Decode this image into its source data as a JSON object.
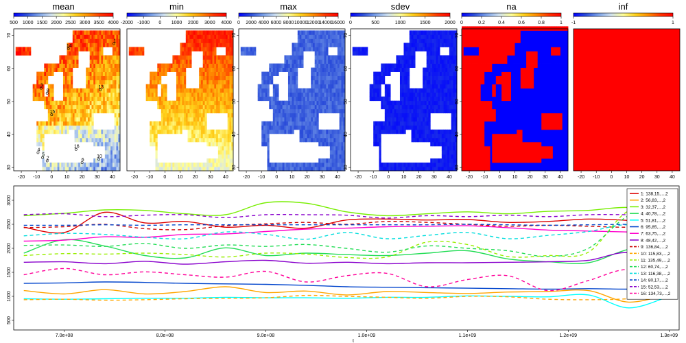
{
  "colors": {
    "map_scale": [
      "#0000ff",
      "#2b4dd9",
      "#7aa0e8",
      "#cfe0f0",
      "#ffff99",
      "#ffd11a",
      "#ff8c00",
      "#ff3300",
      "#ff0000"
    ],
    "na_red": "#ff0000",
    "na_blue": "#0000ff"
  },
  "chart_data": [
    {
      "type": "heatmap",
      "title": "mean",
      "colorbar_ticks": [
        "500",
        "1000",
        "1500",
        "2000",
        "2500",
        "3000",
        "3500",
        "4000"
      ],
      "colorbar_range": [
        500,
        4000
      ],
      "xticks": [
        "-20",
        "-10",
        "0",
        "10",
        "20",
        "30",
        "40"
      ],
      "yticks": [
        "30",
        "40",
        "50",
        "60",
        "70"
      ],
      "xlim": [
        -25,
        45
      ],
      "ylim": [
        29,
        72
      ],
      "style": "mean",
      "station_labels": [
        {
          "id": "1",
          "lon": 41,
          "lat": 67.5
        },
        {
          "id": "14",
          "lon": 11,
          "lat": 66
        },
        {
          "id": "3",
          "lon": -7,
          "lat": 54
        },
        {
          "id": "8",
          "lon": -3,
          "lat": 52.5
        },
        {
          "id": "13",
          "lon": 32,
          "lat": 53.5
        },
        {
          "id": "15",
          "lon": 0,
          "lat": 46
        },
        {
          "id": "16",
          "lon": 16,
          "lat": 35.5
        },
        {
          "id": "4",
          "lon": -9,
          "lat": 34.5
        },
        {
          "id": "5",
          "lon": -6,
          "lat": 33
        },
        {
          "id": "2",
          "lon": -3,
          "lat": 32
        },
        {
          "id": "10",
          "lon": 31,
          "lat": 32.5
        },
        {
          "id": "6",
          "lon": 20,
          "lat": 31.5
        }
      ]
    },
    {
      "type": "heatmap",
      "title": "min",
      "colorbar_ticks": [
        "-2000",
        "-1000",
        "0",
        "1000",
        "2000",
        "3000",
        "4000"
      ],
      "colorbar_range": [
        -2000,
        4000
      ],
      "xticks": [
        "-20",
        "-10",
        "0",
        "10",
        "20",
        "30",
        "40"
      ],
      "yticks": [],
      "xlim": [
        -25,
        45
      ],
      "ylim": [
        29,
        72
      ],
      "style": "min",
      "station_labels": []
    },
    {
      "type": "heatmap",
      "title": "max",
      "colorbar_ticks": [
        "0",
        "2000",
        "4000",
        "6000",
        "8000",
        "10000",
        "12000",
        "14000",
        "16000"
      ],
      "colorbar_range": [
        0,
        16000
      ],
      "xticks": [
        "-20",
        "-10",
        "0",
        "10",
        "20",
        "30",
        "40"
      ],
      "yticks": [
        "30",
        "40",
        "50",
        "60",
        "70"
      ],
      "xlim": [
        -25,
        45
      ],
      "ylim": [
        29,
        72
      ],
      "style": "max",
      "station_labels": []
    },
    {
      "type": "heatmap",
      "title": "sdev",
      "colorbar_ticks": [
        "0",
        "500",
        "1000",
        "1500",
        "2000"
      ],
      "colorbar_range": [
        0,
        2000
      ],
      "xticks": [
        "-20",
        "-10",
        "0",
        "10",
        "20",
        "30",
        "40"
      ],
      "yticks": [
        "30",
        "40",
        "50",
        "60",
        "70"
      ],
      "xlim": [
        -25,
        45
      ],
      "ylim": [
        29,
        72
      ],
      "style": "sdev",
      "station_labels": []
    },
    {
      "type": "heatmap",
      "title": "na",
      "colorbar_ticks": [
        "0",
        "0.2",
        "0.4",
        "0.6",
        "0.8",
        "1"
      ],
      "colorbar_range": [
        0,
        1
      ],
      "xticks": [
        "-20",
        "-10",
        "0",
        "10",
        "20",
        "30",
        "40"
      ],
      "yticks": [
        "30",
        "40",
        "50",
        "60",
        "70"
      ],
      "xlim": [
        -25,
        45
      ],
      "ylim": [
        29,
        72
      ],
      "style": "na",
      "station_labels": []
    },
    {
      "type": "heatmap",
      "title": "inf",
      "colorbar_ticks": [
        "-1",
        "1"
      ],
      "colorbar_range": [
        -1,
        1
      ],
      "xticks": [
        "-20",
        "-10",
        "0",
        "10",
        "20",
        "30",
        "40"
      ],
      "yticks": [],
      "xlim": [
        -25,
        45
      ],
      "ylim": [
        29,
        72
      ],
      "style": "inf",
      "station_labels": []
    },
    {
      "type": "line",
      "xlabel": "t",
      "ylabel": "",
      "xlim": [
        650000000,
        1310000000
      ],
      "ylim": [
        300,
        3300
      ],
      "xticks": [
        {
          "value": 700000000,
          "label": "7.0e+08"
        },
        {
          "value": 800000000,
          "label": "8.0e+08"
        },
        {
          "value": 900000000,
          "label": "9.0e+08"
        },
        {
          "value": 1000000000,
          "label": "1.0e+09"
        },
        {
          "value": 1100000000,
          "label": "1.1e+09"
        },
        {
          "value": 1200000000,
          "label": "1.2e+09"
        },
        {
          "value": 1300000000,
          "label": "1.3e+09"
        }
      ],
      "yticks": [
        {
          "value": 500,
          "label": "500"
        },
        {
          "value": 1000,
          "label": "1000"
        },
        {
          "value": 1500,
          "label": "1500"
        },
        {
          "value": 2000,
          "label": "2000"
        },
        {
          "value": 2500,
          "label": "2500"
        },
        {
          "value": 3000,
          "label": "3000"
        }
      ],
      "legend_position": "top-right",
      "x": [
        660000000,
        700000000,
        740000000,
        780000000,
        820000000,
        860000000,
        900000000,
        940000000,
        980000000,
        1020000000,
        1060000000,
        1100000000,
        1140000000,
        1180000000,
        1220000000,
        1260000000,
        1300000000
      ],
      "series": [
        {
          "name": "1: 138,15,...,2",
          "color": "#dd0000",
          "dash": false,
          "values": [
            2440,
            2330,
            2750,
            2530,
            2560,
            2440,
            2480,
            2420,
            2590,
            2610,
            2590,
            2600,
            2540,
            2560,
            2610,
            2580,
            2500
          ]
        },
        {
          "name": "2: 56,83,...,2",
          "color": "#ffa500",
          "dash": false,
          "values": [
            1120,
            1050,
            1140,
            1050,
            1100,
            1200,
            1080,
            1110,
            1030,
            1100,
            1080,
            1060,
            1090,
            1100,
            1120,
            880,
            1050
          ]
        },
        {
          "name": "3: 32,37,...,2",
          "color": "#77ee00",
          "dash": false,
          "values": [
            2680,
            2730,
            2800,
            2790,
            2720,
            2700,
            2950,
            2940,
            2760,
            2680,
            2720,
            2760,
            2720,
            2770,
            2790,
            2850,
            2700
          ]
        },
        {
          "name": "4: 40,78,...,2",
          "color": "#22dd55",
          "dash": false,
          "values": [
            1900,
            2180,
            2050,
            1850,
            1800,
            2010,
            1850,
            1900,
            1870,
            1850,
            1900,
            1950,
            1780,
            1720,
            1700,
            1980,
            2050
          ]
        },
        {
          "name": "5: 51,81,...,2",
          "color": "#00ffff",
          "dash": false,
          "values": [
            950,
            940,
            950,
            960,
            960,
            980,
            970,
            970,
            960,
            980,
            980,
            1010,
            1000,
            990,
            1030,
            760,
            1000
          ]
        },
        {
          "name": "6: 95,85,...,2",
          "color": "#0044cc",
          "dash": false,
          "values": [
            1270,
            1280,
            1300,
            1290,
            1270,
            1260,
            1250,
            1230,
            1200,
            1190,
            1180,
            1170,
            1160,
            1150,
            1160,
            1150,
            1160
          ]
        },
        {
          "name": "7: 63,75,...,2",
          "color": "#ff00cc",
          "dash": false,
          "values": [
            2150,
            2170,
            2240,
            2230,
            2290,
            2300,
            2350,
            2400,
            2420,
            2450,
            2460,
            2470,
            2430,
            2380,
            2360,
            2340,
            2330
          ]
        },
        {
          "name": "8: 48,42,...,2",
          "color": "#8800cc",
          "dash": false,
          "values": [
            1710,
            1720,
            1680,
            1730,
            1670,
            1720,
            1750,
            1690,
            1710,
            1680,
            1700,
            1700,
            1710,
            1720,
            1750,
            1910,
            1600
          ]
        },
        {
          "name": "9: 136,84,...,2",
          "color": "#cc0000",
          "dash": true,
          "values": [
            2430,
            2450,
            2500,
            2410,
            2390,
            2470,
            2510,
            2540,
            2500,
            2560,
            2540,
            2500,
            2460,
            2480,
            2460,
            2440,
            2490
          ]
        },
        {
          "name": "10: 115,83,...,2",
          "color": "#ffa500",
          "dash": true,
          "values": [
            930,
            940,
            920,
            930,
            950,
            960,
            970,
            1020,
            1000,
            980,
            960,
            1000,
            990,
            940,
            930,
            950,
            1020
          ]
        },
        {
          "name": "11: 135,49,...,2",
          "color": "#99ee00",
          "dash": true,
          "values": [
            1850,
            1890,
            1880,
            1900,
            1870,
            1820,
            1900,
            1880,
            1810,
            1820,
            2130,
            2080,
            1830,
            1850,
            1920,
            2780,
            2690
          ]
        },
        {
          "name": "12: 60,74,...,2",
          "color": "#22dd55",
          "dash": true,
          "values": [
            2060,
            2070,
            2040,
            2100,
            2000,
            2070,
            2040,
            2080,
            2000,
            1920,
            2050,
            2000,
            1950,
            1830,
            2000,
            2680,
            2780
          ]
        },
        {
          "name": "13: 116,38,...,2",
          "color": "#00dddd",
          "dash": true,
          "values": [
            2260,
            2310,
            2290,
            2230,
            2200,
            2340,
            2290,
            2190,
            2330,
            2200,
            2270,
            2330,
            2200,
            2270,
            2350,
            2490,
            2260
          ]
        },
        {
          "name": "14: 80,17,...,2",
          "color": "#0044cc",
          "dash": true,
          "values": [
            2480,
            2480,
            2490,
            2480,
            2490,
            2490,
            2490,
            2490,
            2490,
            2490,
            2490,
            2500,
            2490,
            2480,
            2490,
            2500,
            2500
          ]
        },
        {
          "name": "15: 52,53,...,2",
          "color": "#8800cc",
          "dash": true,
          "values": [
            2700,
            2720,
            2660,
            2690,
            2700,
            2640,
            2700,
            2700,
            2690,
            2630,
            2680,
            2660,
            2690,
            2660,
            2700,
            2700,
            2680
          ]
        },
        {
          "name": "16: 134,73,...,2",
          "color": "#ff0099",
          "dash": true,
          "values": [
            1450,
            1580,
            1450,
            1510,
            1450,
            1400,
            1520,
            1300,
            1430,
            1480,
            1200,
            1350,
            1430,
            1120,
            1330,
            1560,
            1300
          ]
        }
      ]
    }
  ]
}
